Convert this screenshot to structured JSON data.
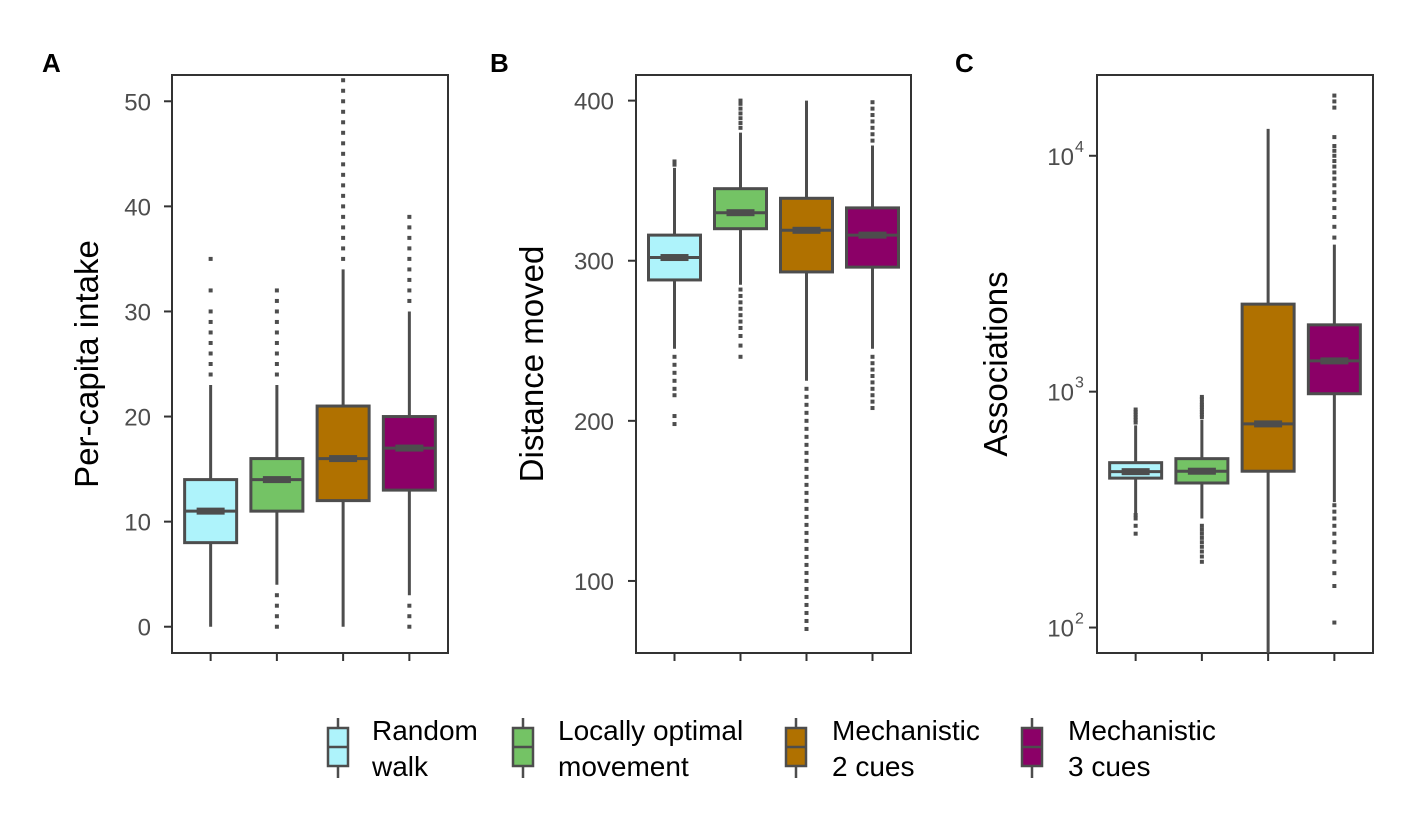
{
  "legend": {
    "items": [
      {
        "line1": "Random",
        "line2": "walk",
        "color": "#aef3fb"
      },
      {
        "line1": "Locally optimal",
        "line2": "movement",
        "color": "#74c365"
      },
      {
        "line1": "Mechanistic",
        "line2": "2 cues",
        "color": "#b07100"
      },
      {
        "line1": "Mechanistic",
        "line2": "3 cues",
        "color": "#8b0067"
      }
    ]
  },
  "chart_data": [
    {
      "type": "box",
      "panel_label": "A",
      "ylabel": "Per-capita intake",
      "scale": "linear",
      "ylim": [
        -2.5,
        52.5
      ],
      "yticks": [
        0,
        10,
        20,
        30,
        40,
        50
      ],
      "ytick_labels": [
        "0",
        "10",
        "20",
        "30",
        "40",
        "50"
      ],
      "series": [
        {
          "name": "Random walk",
          "whisker_low": 0,
          "q1": 8,
          "median": 11,
          "q3": 14,
          "whisker_high": 23,
          "outliers_high": [
            24,
            25,
            26,
            27,
            28,
            29,
            30,
            32,
            35
          ],
          "outliers_low": []
        },
        {
          "name": "Locally optimal movement",
          "whisker_low": 4,
          "q1": 11,
          "median": 14,
          "q3": 16,
          "whisker_high": 23,
          "outliers_high": [
            24,
            25,
            26,
            27,
            28,
            29,
            30,
            31,
            32
          ],
          "outliers_low": [
            0,
            1,
            2,
            3
          ]
        },
        {
          "name": "Mechanistic 2 cues",
          "whisker_low": 0,
          "q1": 12,
          "median": 16,
          "q3": 21,
          "whisker_high": 34,
          "outliers_high": [
            35,
            36,
            37,
            38,
            39,
            40,
            41,
            42,
            43,
            44,
            45,
            46,
            47,
            48,
            49,
            50,
            51,
            52
          ],
          "outliers_low": []
        },
        {
          "name": "Mechanistic 3 cues",
          "whisker_low": 3,
          "q1": 13,
          "median": 17,
          "q3": 20,
          "whisker_high": 30,
          "outliers_high": [
            31,
            32,
            33,
            34,
            35,
            36,
            37,
            38,
            39
          ],
          "outliers_low": [
            0,
            1,
            2
          ]
        }
      ]
    },
    {
      "type": "box",
      "panel_label": "B",
      "ylabel": "Distance moved",
      "scale": "linear",
      "ylim": [
        55,
        416
      ],
      "yticks": [
        100,
        200,
        300,
        400
      ],
      "ytick_labels": [
        "100",
        "200",
        "300",
        "400"
      ],
      "series": [
        {
          "name": "Random walk",
          "whisker_low": 245,
          "q1": 288,
          "median": 302,
          "q3": 316,
          "whisker_high": 358,
          "outliers_high": [
            360,
            362
          ],
          "outliers_low": [
            198,
            203,
            216,
            220,
            225,
            230,
            235,
            240
          ]
        },
        {
          "name": "Locally optimal movement",
          "whisker_low": 285,
          "q1": 320,
          "median": 330,
          "q3": 345,
          "whisker_high": 380,
          "outliers_high": [
            383,
            386,
            389,
            392,
            395,
            398,
            400
          ],
          "outliers_low": [
            240,
            247,
            253,
            258,
            262,
            266,
            270,
            274,
            278,
            282
          ]
        },
        {
          "name": "Mechanistic 2 cues",
          "whisker_low": 225,
          "q1": 293,
          "median": 319,
          "q3": 339,
          "whisker_high": 400,
          "outliers_high": [],
          "outliers_low": [
            70,
            75,
            80,
            85,
            90,
            95,
            100,
            105,
            110,
            115,
            120,
            125,
            130,
            135,
            140,
            145,
            150,
            155,
            160,
            165,
            170,
            175,
            180,
            185,
            190,
            195,
            200,
            205,
            210,
            215,
            220
          ]
        },
        {
          "name": "Mechanistic 3 cues",
          "whisker_low": 245,
          "q1": 296,
          "median": 316,
          "q3": 333,
          "whisker_high": 372,
          "outliers_high": [
            375,
            379,
            383,
            387,
            391,
            395,
            399
          ],
          "outliers_low": [
            208,
            212,
            216,
            220,
            224,
            228,
            232,
            236,
            240
          ]
        }
      ]
    },
    {
      "type": "box",
      "panel_label": "C",
      "ylabel": "Associations",
      "scale": "log",
      "ylim": [
        78,
        22000
      ],
      "yticks": [
        100,
        1000,
        10000
      ],
      "ytick_base": "10",
      "ytick_exponents": [
        "2",
        "3",
        "4"
      ],
      "series": [
        {
          "name": "Random walk",
          "whisker_low": 305,
          "q1": 430,
          "median": 458,
          "q3": 500,
          "whisker_high": 720,
          "outliers_high": [
            740,
            760,
            780,
            800,
            820,
            840
          ],
          "outliers_low": [
            250,
            270,
            290,
            300
          ]
        },
        {
          "name": "Locally optimal movement",
          "whisker_low": 290,
          "q1": 410,
          "median": 460,
          "q3": 520,
          "whisker_high": 760,
          "outliers_high": [
            780,
            800,
            820,
            840,
            860,
            880,
            900,
            930,
            950
          ],
          "outliers_low": [
            190,
            200,
            210,
            220,
            230,
            240,
            250,
            260,
            270
          ]
        },
        {
          "name": "Mechanistic 2 cues",
          "whisker_low": 70,
          "q1": 460,
          "median": 730,
          "q3": 2350,
          "whisker_high": 13000,
          "outliers_high": [],
          "outliers_low": []
        },
        {
          "name": "Mechanistic 3 cues",
          "whisker_low": 340,
          "q1": 980,
          "median": 1350,
          "q3": 1920,
          "whisker_high": 4200,
          "outliers_high": [
            4500,
            5000,
            5500,
            6000,
            6500,
            7000,
            7500,
            8000,
            8500,
            9000,
            9500,
            10000,
            10500,
            11000,
            12000,
            16000,
            17000,
            18000
          ],
          "outliers_low": [
            105,
            150,
            170,
            190,
            210,
            230,
            250,
            270,
            290,
            310,
            330
          ]
        }
      ]
    }
  ]
}
